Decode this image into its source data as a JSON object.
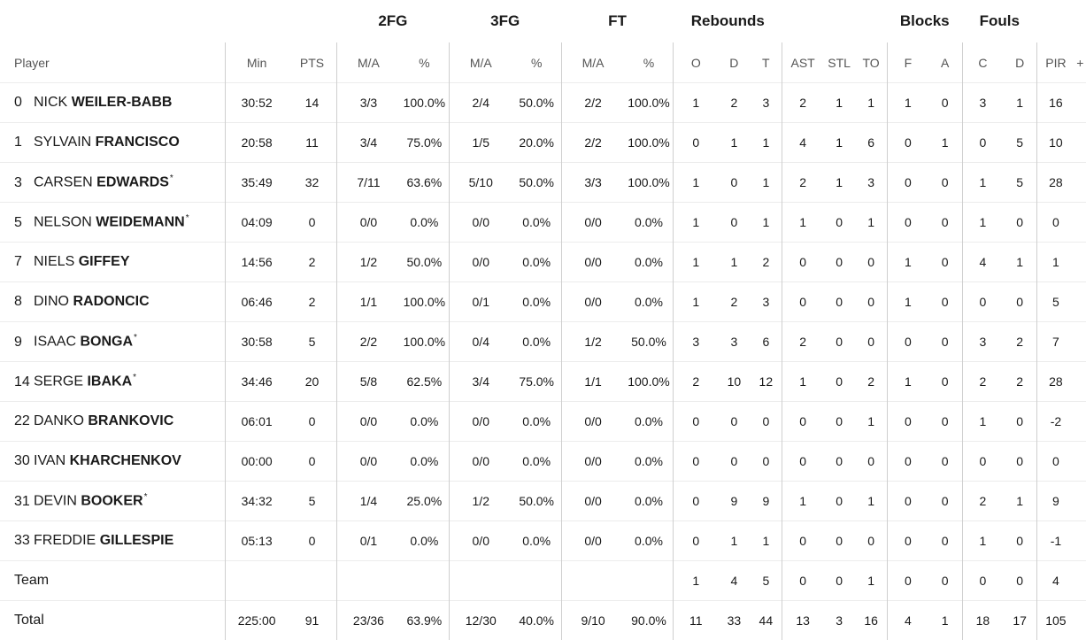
{
  "groups": {
    "fg2": "2FG",
    "fg3": "3FG",
    "ft": "FT",
    "rebounds": "Rebounds",
    "blocks": "Blocks",
    "fouls": "Fouls"
  },
  "columns": {
    "player": "Player",
    "min": "Min",
    "pts": "PTS",
    "fg2_ma": "M/A",
    "fg2_pct": "%",
    "fg3_ma": "M/A",
    "fg3_pct": "%",
    "ft_ma": "M/A",
    "ft_pct": "%",
    "reb_o": "O",
    "reb_d": "D",
    "reb_t": "T",
    "ast": "AST",
    "stl": "STL",
    "to": "TO",
    "blk_f": "F",
    "blk_a": "A",
    "foul_c": "C",
    "foul_d": "D",
    "pir": "PIR",
    "plusminus": "+"
  },
  "players": [
    {
      "num": "0",
      "first": "NICK",
      "last": "WEILER-BABB",
      "starter": false,
      "min": "30:52",
      "pts": "14",
      "fg2_ma": "3/3",
      "fg2_pct": "100.0%",
      "fg3_ma": "2/4",
      "fg3_pct": "50.0%",
      "ft_ma": "2/2",
      "ft_pct": "100.0%",
      "reb_o": "1",
      "reb_d": "2",
      "reb_t": "3",
      "ast": "2",
      "stl": "1",
      "to": "1",
      "blk_f": "1",
      "blk_a": "0",
      "foul_c": "3",
      "foul_d": "1",
      "pir": "16"
    },
    {
      "num": "1",
      "first": "SYLVAIN",
      "last": "FRANCISCO",
      "starter": false,
      "min": "20:58",
      "pts": "11",
      "fg2_ma": "3/4",
      "fg2_pct": "75.0%",
      "fg3_ma": "1/5",
      "fg3_pct": "20.0%",
      "ft_ma": "2/2",
      "ft_pct": "100.0%",
      "reb_o": "0",
      "reb_d": "1",
      "reb_t": "1",
      "ast": "4",
      "stl": "1",
      "to": "6",
      "blk_f": "0",
      "blk_a": "1",
      "foul_c": "0",
      "foul_d": "5",
      "pir": "10"
    },
    {
      "num": "3",
      "first": "CARSEN",
      "last": "EDWARDS",
      "starter": true,
      "min": "35:49",
      "pts": "32",
      "fg2_ma": "7/11",
      "fg2_pct": "63.6%",
      "fg3_ma": "5/10",
      "fg3_pct": "50.0%",
      "ft_ma": "3/3",
      "ft_pct": "100.0%",
      "reb_o": "1",
      "reb_d": "0",
      "reb_t": "1",
      "ast": "2",
      "stl": "1",
      "to": "3",
      "blk_f": "0",
      "blk_a": "0",
      "foul_c": "1",
      "foul_d": "5",
      "pir": "28"
    },
    {
      "num": "5",
      "first": "NELSON",
      "last": "WEIDEMANN",
      "starter": true,
      "min": "04:09",
      "pts": "0",
      "fg2_ma": "0/0",
      "fg2_pct": "0.0%",
      "fg3_ma": "0/0",
      "fg3_pct": "0.0%",
      "ft_ma": "0/0",
      "ft_pct": "0.0%",
      "reb_o": "1",
      "reb_d": "0",
      "reb_t": "1",
      "ast": "1",
      "stl": "0",
      "to": "1",
      "blk_f": "0",
      "blk_a": "0",
      "foul_c": "1",
      "foul_d": "0",
      "pir": "0"
    },
    {
      "num": "7",
      "first": "NIELS",
      "last": "GIFFEY",
      "starter": false,
      "min": "14:56",
      "pts": "2",
      "fg2_ma": "1/2",
      "fg2_pct": "50.0%",
      "fg3_ma": "0/0",
      "fg3_pct": "0.0%",
      "ft_ma": "0/0",
      "ft_pct": "0.0%",
      "reb_o": "1",
      "reb_d": "1",
      "reb_t": "2",
      "ast": "0",
      "stl": "0",
      "to": "0",
      "blk_f": "1",
      "blk_a": "0",
      "foul_c": "4",
      "foul_d": "1",
      "pir": "1"
    },
    {
      "num": "8",
      "first": "DINO",
      "last": "RADONCIC",
      "starter": false,
      "min": "06:46",
      "pts": "2",
      "fg2_ma": "1/1",
      "fg2_pct": "100.0%",
      "fg3_ma": "0/1",
      "fg3_pct": "0.0%",
      "ft_ma": "0/0",
      "ft_pct": "0.0%",
      "reb_o": "1",
      "reb_d": "2",
      "reb_t": "3",
      "ast": "0",
      "stl": "0",
      "to": "0",
      "blk_f": "1",
      "blk_a": "0",
      "foul_c": "0",
      "foul_d": "0",
      "pir": "5"
    },
    {
      "num": "9",
      "first": "ISAAC",
      "last": "BONGA",
      "starter": true,
      "min": "30:58",
      "pts": "5",
      "fg2_ma": "2/2",
      "fg2_pct": "100.0%",
      "fg3_ma": "0/4",
      "fg3_pct": "0.0%",
      "ft_ma": "1/2",
      "ft_pct": "50.0%",
      "reb_o": "3",
      "reb_d": "3",
      "reb_t": "6",
      "ast": "2",
      "stl": "0",
      "to": "0",
      "blk_f": "0",
      "blk_a": "0",
      "foul_c": "3",
      "foul_d": "2",
      "pir": "7"
    },
    {
      "num": "14",
      "first": "SERGE",
      "last": "IBAKA",
      "starter": true,
      "min": "34:46",
      "pts": "20",
      "fg2_ma": "5/8",
      "fg2_pct": "62.5%",
      "fg3_ma": "3/4",
      "fg3_pct": "75.0%",
      "ft_ma": "1/1",
      "ft_pct": "100.0%",
      "reb_o": "2",
      "reb_d": "10",
      "reb_t": "12",
      "ast": "1",
      "stl": "0",
      "to": "2",
      "blk_f": "1",
      "blk_a": "0",
      "foul_c": "2",
      "foul_d": "2",
      "pir": "28"
    },
    {
      "num": "22",
      "first": "DANKO",
      "last": "BRANKOVIC",
      "starter": false,
      "min": "06:01",
      "pts": "0",
      "fg2_ma": "0/0",
      "fg2_pct": "0.0%",
      "fg3_ma": "0/0",
      "fg3_pct": "0.0%",
      "ft_ma": "0/0",
      "ft_pct": "0.0%",
      "reb_o": "0",
      "reb_d": "0",
      "reb_t": "0",
      "ast": "0",
      "stl": "0",
      "to": "1",
      "blk_f": "0",
      "blk_a": "0",
      "foul_c": "1",
      "foul_d": "0",
      "pir": "-2"
    },
    {
      "num": "30",
      "first": "IVAN",
      "last": "KHARCHENKOV",
      "starter": false,
      "min": "00:00",
      "pts": "0",
      "fg2_ma": "0/0",
      "fg2_pct": "0.0%",
      "fg3_ma": "0/0",
      "fg3_pct": "0.0%",
      "ft_ma": "0/0",
      "ft_pct": "0.0%",
      "reb_o": "0",
      "reb_d": "0",
      "reb_t": "0",
      "ast": "0",
      "stl": "0",
      "to": "0",
      "blk_f": "0",
      "blk_a": "0",
      "foul_c": "0",
      "foul_d": "0",
      "pir": "0"
    },
    {
      "num": "31",
      "first": "DEVIN",
      "last": "BOOKER",
      "starter": true,
      "min": "34:32",
      "pts": "5",
      "fg2_ma": "1/4",
      "fg2_pct": "25.0%",
      "fg3_ma": "1/2",
      "fg3_pct": "50.0%",
      "ft_ma": "0/0",
      "ft_pct": "0.0%",
      "reb_o": "0",
      "reb_d": "9",
      "reb_t": "9",
      "ast": "1",
      "stl": "0",
      "to": "1",
      "blk_f": "0",
      "blk_a": "0",
      "foul_c": "2",
      "foul_d": "1",
      "pir": "9"
    },
    {
      "num": "33",
      "first": "FREDDIE",
      "last": "GILLESPIE",
      "starter": false,
      "min": "05:13",
      "pts": "0",
      "fg2_ma": "0/1",
      "fg2_pct": "0.0%",
      "fg3_ma": "0/0",
      "fg3_pct": "0.0%",
      "ft_ma": "0/0",
      "ft_pct": "0.0%",
      "reb_o": "0",
      "reb_d": "1",
      "reb_t": "1",
      "ast": "0",
      "stl": "0",
      "to": "0",
      "blk_f": "0",
      "blk_a": "0",
      "foul_c": "1",
      "foul_d": "0",
      "pir": "-1"
    }
  ],
  "team": {
    "label": "Team",
    "min": "",
    "pts": "",
    "fg2_ma": "",
    "fg2_pct": "",
    "fg3_ma": "",
    "fg3_pct": "",
    "ft_ma": "",
    "ft_pct": "",
    "reb_o": "1",
    "reb_d": "4",
    "reb_t": "5",
    "ast": "0",
    "stl": "0",
    "to": "1",
    "blk_f": "0",
    "blk_a": "0",
    "foul_c": "0",
    "foul_d": "0",
    "pir": "4"
  },
  "total": {
    "label": "Total",
    "min": "225:00",
    "pts": "91",
    "fg2_ma": "23/36",
    "fg2_pct": "63.9%",
    "fg3_ma": "12/30",
    "fg3_pct": "40.0%",
    "ft_ma": "9/10",
    "ft_pct": "90.0%",
    "reb_o": "11",
    "reb_d": "33",
    "reb_t": "44",
    "ast": "13",
    "stl": "3",
    "to": "16",
    "blk_f": "4",
    "blk_a": "1",
    "foul_c": "18",
    "foul_d": "17",
    "pir": "105"
  },
  "starter_marker": "*"
}
